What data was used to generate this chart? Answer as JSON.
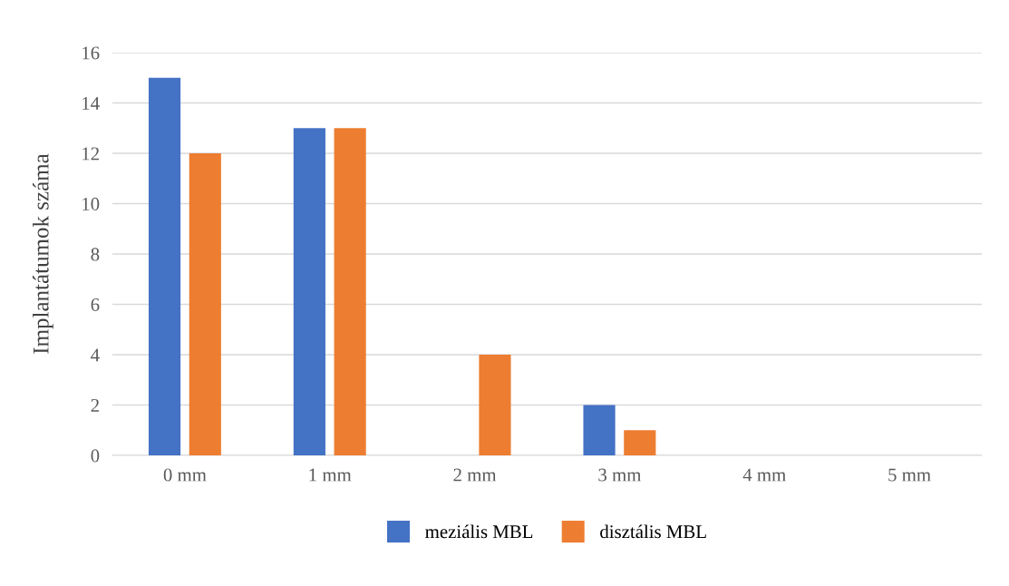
{
  "chart_data": {
    "type": "bar",
    "ylabel": "Implantátumok száma",
    "categories": [
      "0 mm",
      "1 mm",
      "2 mm",
      "3 mm",
      "4 mm",
      "5 mm"
    ],
    "series": [
      {
        "name": "meziális MBL",
        "color": "#4472c4",
        "values": [
          15,
          13,
          0,
          2,
          0,
          0
        ]
      },
      {
        "name": "disztális MBL",
        "color": "#ed7d31",
        "values": [
          12,
          13,
          4,
          1,
          0,
          0
        ]
      }
    ],
    "ylim": [
      0,
      16
    ],
    "yticks": [
      0,
      2,
      4,
      6,
      8,
      10,
      12,
      14,
      16
    ],
    "grid": "y",
    "legend": "bottom"
  }
}
